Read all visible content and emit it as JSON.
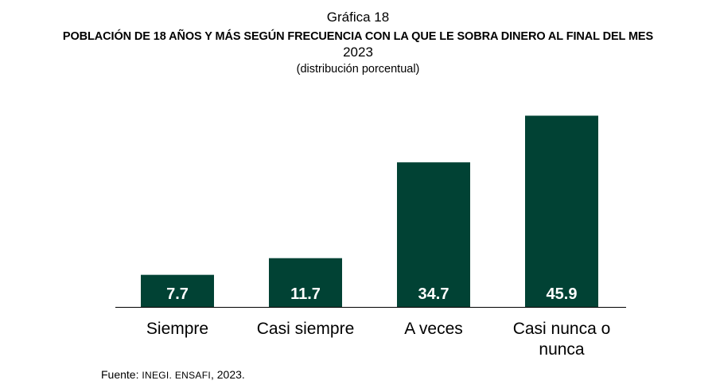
{
  "header": {
    "label": "Gráfica 18",
    "title": "POBLACIÓN DE 18 AÑOS Y MÁS SEGÚN FRECUENCIA CON LA QUE LE SOBRA DINERO AL FINAL DEL MES",
    "year": "2023",
    "subtitle": "(distribución porcentual)"
  },
  "source": {
    "prefix": "Fuente: ",
    "org": "INEGI. ENSAFI",
    "suffix": ", 2023."
  },
  "colors": {
    "bar": "#014234",
    "value_text": "#ffffff"
  },
  "chart_data": {
    "type": "bar",
    "title": "POBLACIÓN DE 18 AÑOS Y MÁS SEGÚN FRECUENCIA CON LA QUE LE SOBRA DINERO AL FINAL DEL MES",
    "subtitle": "(distribución porcentual)",
    "xlabel": "",
    "ylabel": "",
    "ylim": [
      0,
      50
    ],
    "grid": false,
    "categories": [
      [
        "Siempre"
      ],
      [
        "Casi siempre"
      ],
      [
        "A veces"
      ],
      [
        "Casi nunca o",
        "nunca"
      ]
    ],
    "values": [
      7.7,
      11.7,
      34.7,
      45.9
    ],
    "value_labels": [
      "7.7",
      "11.7",
      "34.7",
      "45.9"
    ]
  }
}
